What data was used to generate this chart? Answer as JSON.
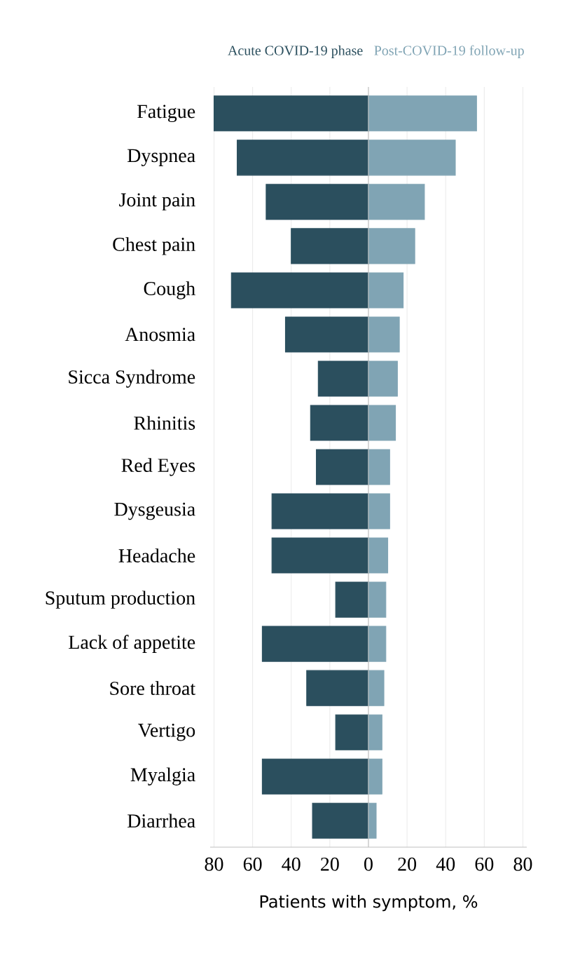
{
  "chart_data": {
    "type": "bar",
    "orientation": "horizontal",
    "xlabel": "Patients with symptom, %",
    "categories": [
      "Fatigue",
      "Dyspnea",
      "Joint pain",
      "Chest pain",
      "Cough",
      "Anosmia",
      "Sicca Syndrome",
      "Rhinitis",
      "Red Eyes",
      "Dysgeusia",
      "Headache",
      "Sputum production",
      "Lack of appetite",
      "Sore throat",
      "Vertigo",
      "Myalgia",
      "Diarrhea"
    ],
    "series": [
      {
        "name": "Acute COVID-19 phase",
        "color": "#2b4f5e",
        "values": [
          -80,
          -68,
          -53,
          -40,
          -71,
          -43,
          -26,
          -30,
          -27,
          -50,
          -50,
          -17,
          -55,
          -32,
          -17,
          -55,
          -29
        ]
      },
      {
        "name": "Post-COVID-19 follow-up",
        "color": "#80a4b4",
        "values": [
          56,
          45,
          29,
          24,
          18,
          16,
          15,
          14,
          11,
          11,
          10,
          9,
          9,
          8,
          7,
          7,
          4
        ]
      }
    ],
    "xlim": [
      -82,
      82
    ],
    "xticks": [
      {
        "value": -80,
        "label": "80"
      },
      {
        "value": -60,
        "label": "60"
      },
      {
        "value": -40,
        "label": "40"
      },
      {
        "value": -20,
        "label": "20"
      },
      0,
      20,
      40,
      60,
      80
    ],
    "grid": "x",
    "stacked": true
  }
}
